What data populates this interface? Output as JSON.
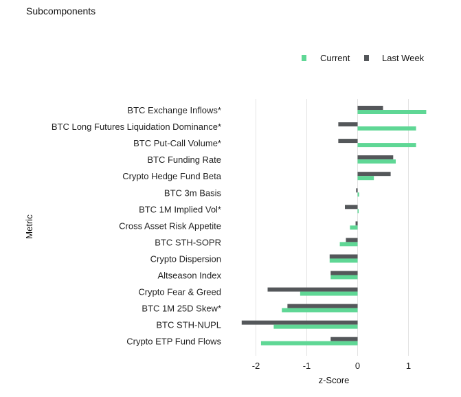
{
  "chart_data": {
    "type": "bar",
    "orientation": "horizontal",
    "title": "Subcomponents",
    "xlabel": "z-Score",
    "ylabel": "Metric",
    "xlim": [
      -2.4,
      1.4
    ],
    "xticks": [
      -2,
      -1,
      0,
      1
    ],
    "xtick_labels": [
      "-2",
      "-1",
      "0",
      "1"
    ],
    "grid": "vertical",
    "legend_position": "top-right",
    "categories": [
      "BTC Exchange Inflows*",
      "BTC Long Futures Liquidation Dominance*",
      "BTC Put-Call Volume*",
      "BTC Funding Rate",
      "Crypto Hedge Fund Beta",
      "BTC 3m Basis",
      "BTC 1M Implied Vol*",
      "Cross Asset Risk Appetite",
      "BTC STH-SOPR",
      "Crypto Dispersion",
      "Altseason Index",
      "Crypto Fear & Greed",
      "BTC 1M 25D Skew*",
      "BTC STH-NUPL",
      "Crypto ETP Fund Flows"
    ],
    "series": [
      {
        "name": "Current",
        "color": "#5fd795",
        "values": [
          1.35,
          1.15,
          1.15,
          0.75,
          0.32,
          0.03,
          0.01,
          -0.15,
          -0.35,
          -0.55,
          -0.53,
          -1.13,
          -1.49,
          -1.65,
          -1.9
        ]
      },
      {
        "name": "Last Week",
        "color": "#54575a",
        "values": [
          0.5,
          -0.38,
          -0.38,
          0.7,
          0.65,
          -0.03,
          -0.25,
          -0.04,
          -0.23,
          -0.55,
          -0.53,
          -1.77,
          -1.38,
          -2.28,
          -0.53
        ]
      }
    ]
  }
}
